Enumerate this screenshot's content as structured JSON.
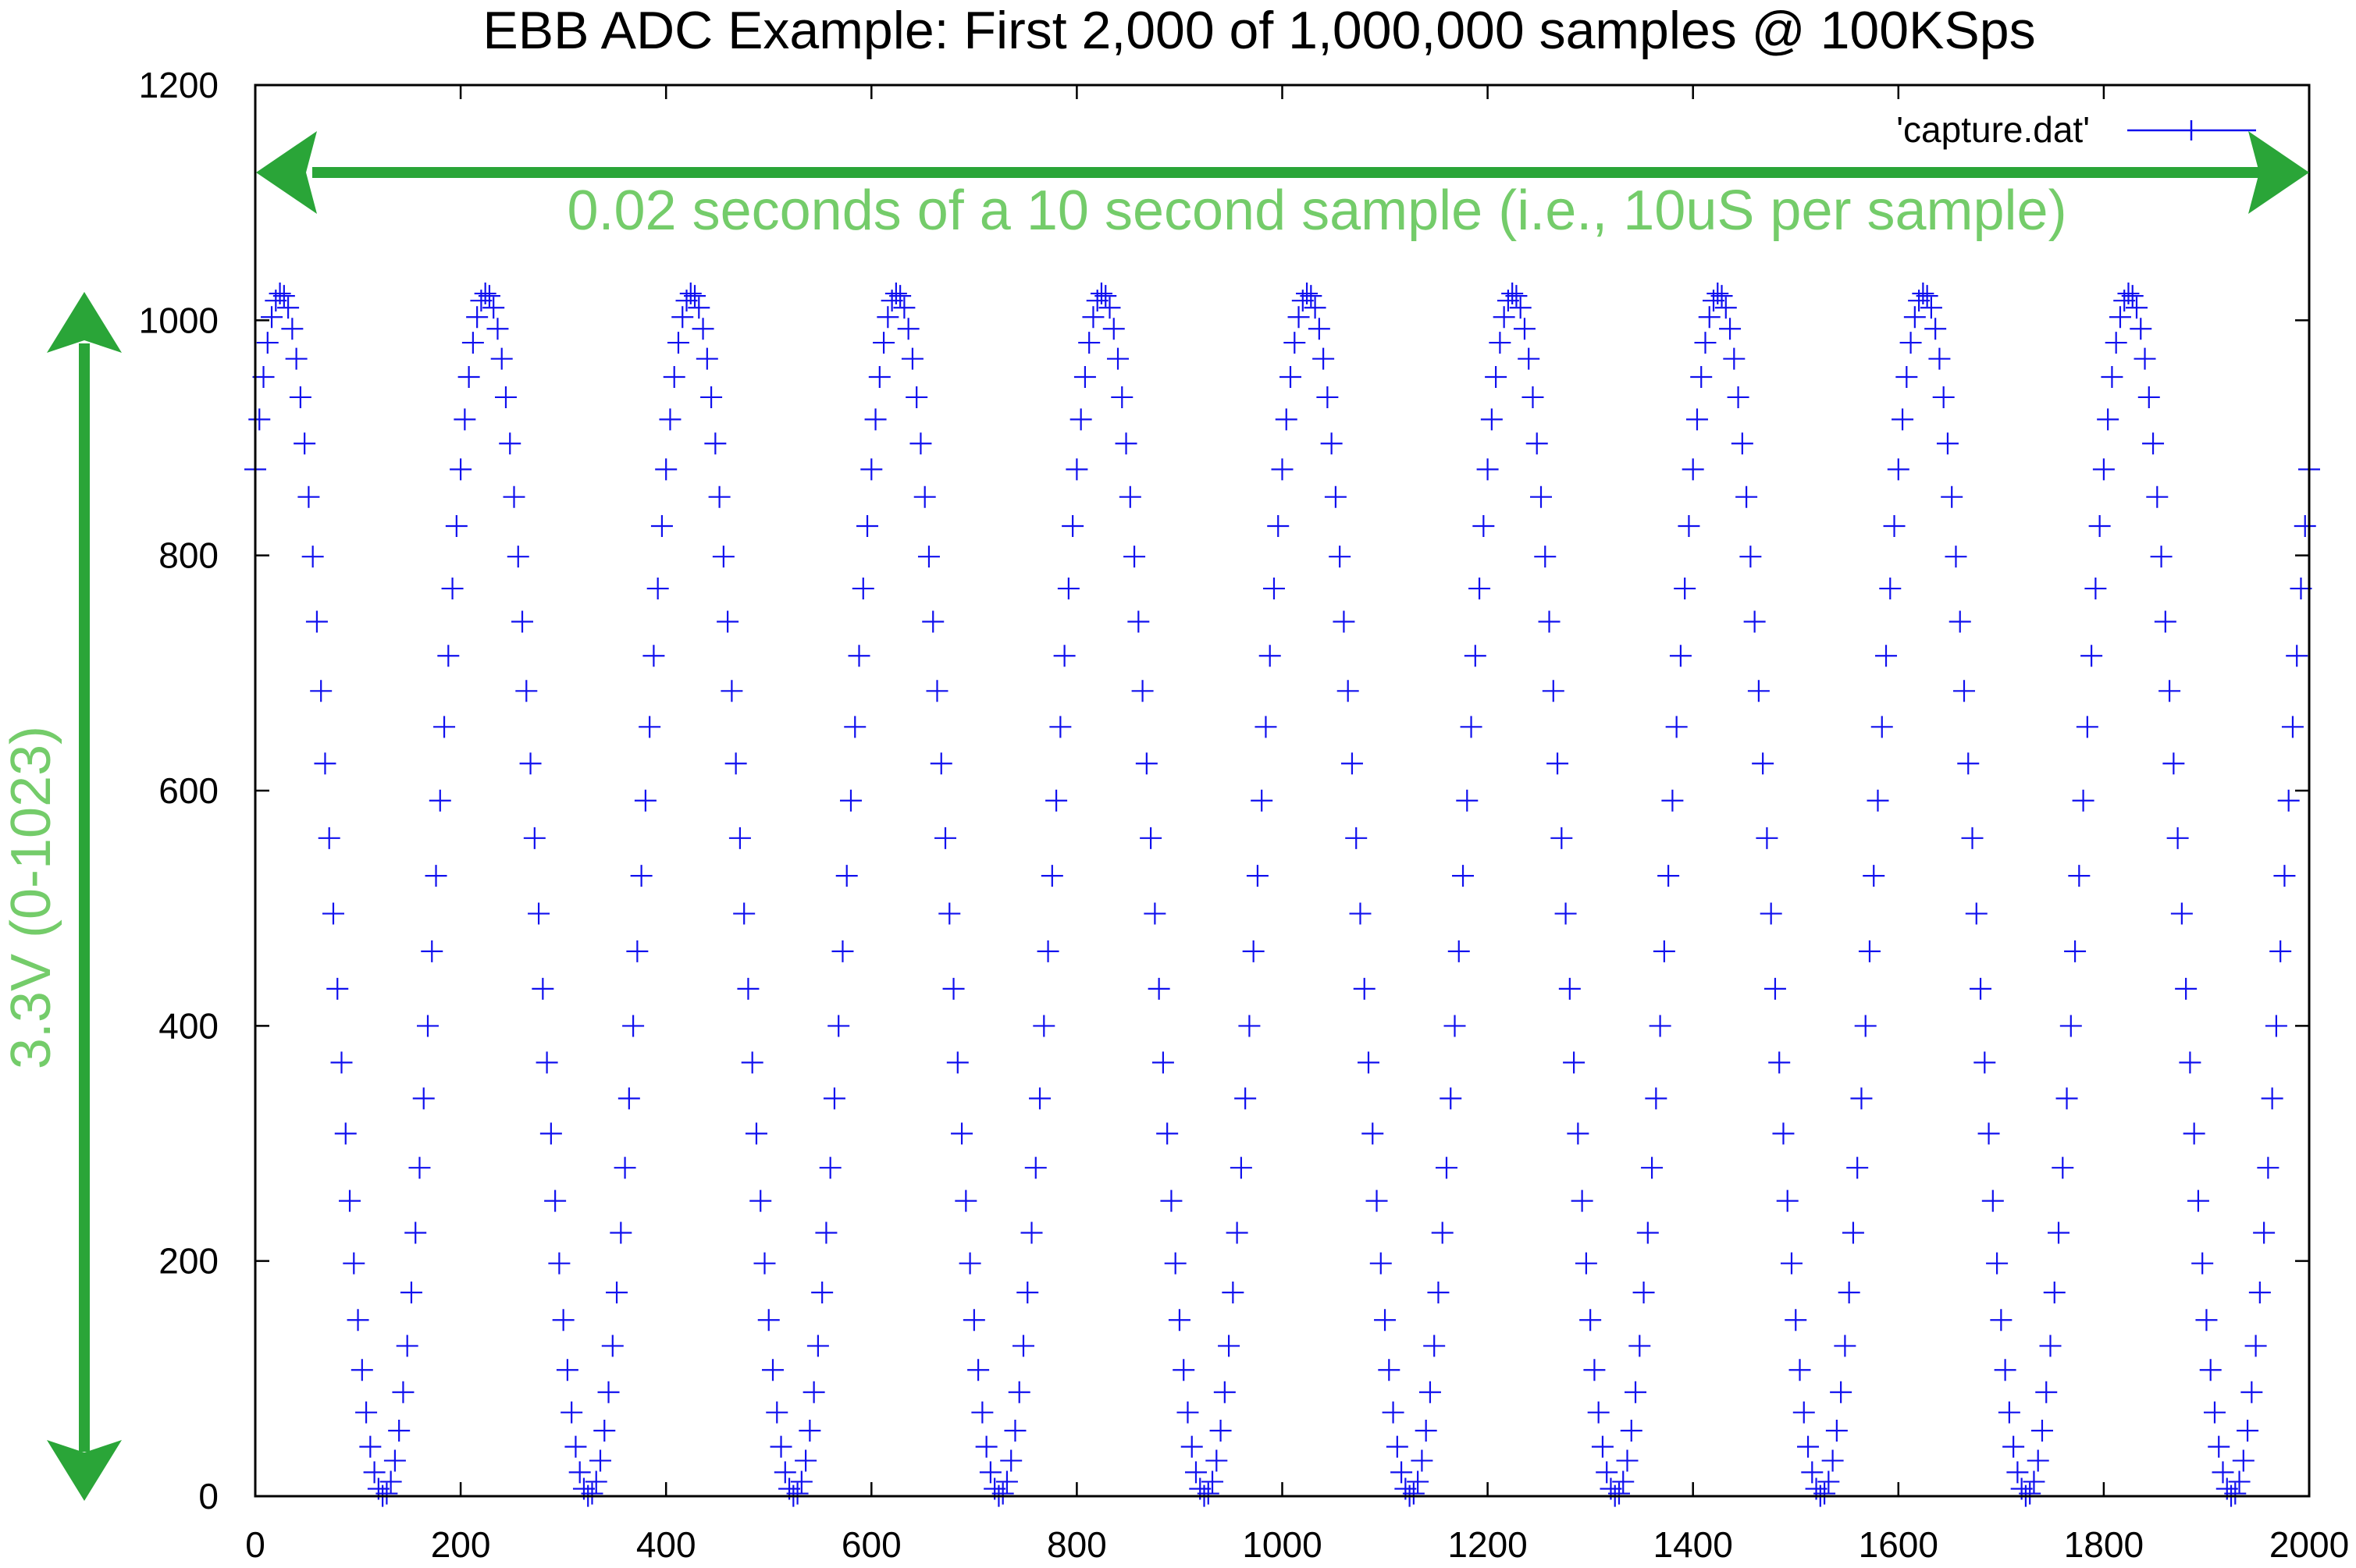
{
  "chart_data": {
    "type": "scatter",
    "title": "EBB ADC Example: First 2,000 of 1,000,000 samples @ 100KSps",
    "xlabel": "",
    "ylabel": "",
    "xlim": [
      0,
      2000
    ],
    "ylim": [
      0,
      1200
    ],
    "x_ticks": [
      "0",
      "200",
      "400",
      "600",
      "800",
      "1000",
      "1200",
      "1400",
      "1600",
      "1800",
      "2000"
    ],
    "y_ticks": [
      "0",
      "200",
      "400",
      "600",
      "800",
      "1000",
      "1200"
    ],
    "grid": false,
    "legend_position": "top-right",
    "marker": "plus",
    "series": [
      {
        "name": "'capture.dat'",
        "color": "#1010ee",
        "waveform": "sine",
        "sample_step": 4,
        "period": 200,
        "min": 0,
        "max": 1023,
        "first_peak_x": 25,
        "x": [
          0,
          25,
          75,
          125,
          175,
          225,
          275,
          325,
          375,
          425,
          475,
          525,
          575,
          625,
          675,
          725,
          775,
          825,
          875,
          925,
          975,
          1025,
          1075,
          1125,
          1175,
          1225,
          1275,
          1325,
          1375,
          1425,
          1475,
          1525,
          1575,
          1625,
          1675,
          1725,
          1775,
          1825,
          1875,
          1925,
          1975,
          2000
        ],
        "y": [
          873,
          1023,
          512,
          0,
          512,
          1023,
          512,
          0,
          512,
          1023,
          512,
          0,
          512,
          1023,
          512,
          0,
          512,
          1023,
          512,
          0,
          512,
          1023,
          512,
          0,
          512,
          1023,
          512,
          0,
          512,
          1023,
          512,
          0,
          512,
          1023,
          512,
          0,
          512,
          1023,
          512,
          0,
          512,
          873
        ]
      }
    ],
    "annotations": [
      {
        "text": "0.02 seconds of a 10 second sample (i.e., 10uS per sample)",
        "color": "#74cc6a",
        "arrow_color": "#2aa538",
        "arrow": "horizontal",
        "x_range": [
          0,
          2000
        ],
        "y": 1125
      },
      {
        "text": "3.3V  (0-1023)",
        "color": "#74cc6a",
        "arrow_color": "#2aa538",
        "arrow": "vertical",
        "y_range": [
          0,
          1023
        ]
      }
    ]
  }
}
